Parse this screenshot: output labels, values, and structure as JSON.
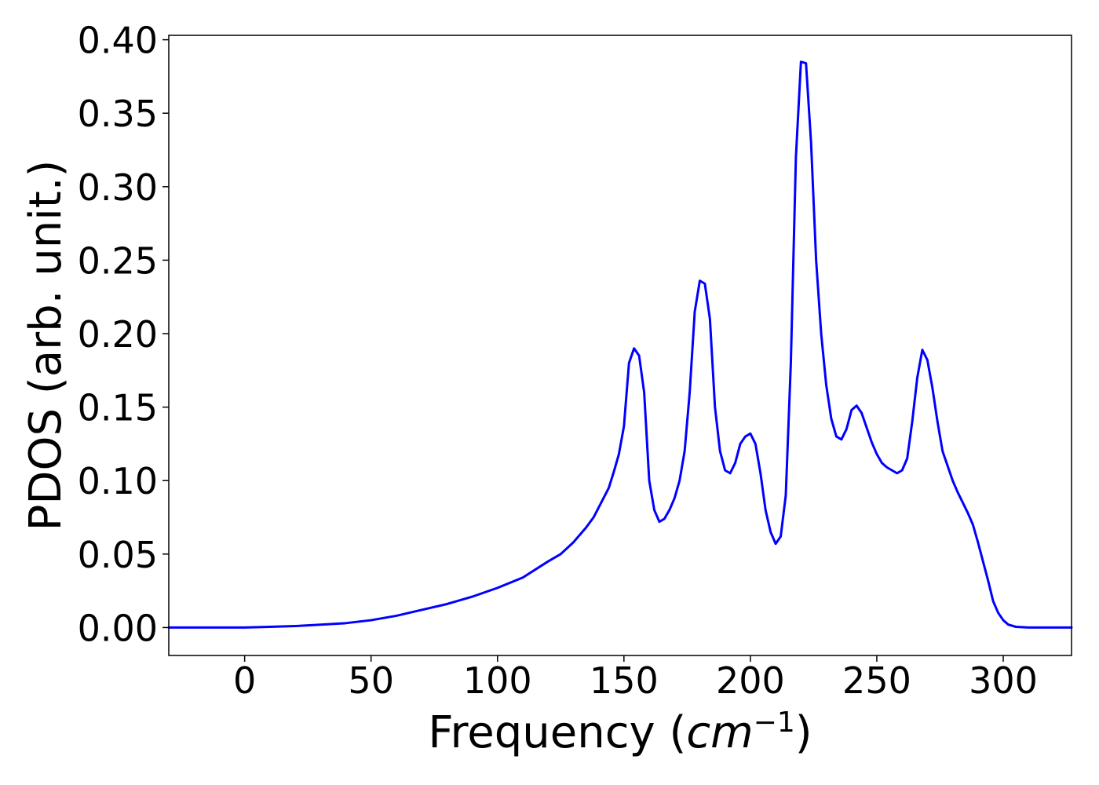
{
  "chart_data": {
    "type": "line",
    "title": "",
    "xlabel": "Frequency (",
    "xlabel_math_base": "cm",
    "xlabel_math_exp": "−1",
    "xlabel_close": ")",
    "ylabel": "PDOS (arb. unit.)",
    "xlim": [
      -30,
      327
    ],
    "ylim": [
      -0.019,
      0.403
    ],
    "xticks": [
      0,
      50,
      100,
      150,
      200,
      250,
      300
    ],
    "xtick_labels": [
      "0",
      "50",
      "100",
      "150",
      "200",
      "250",
      "300"
    ],
    "yticks": [
      0.0,
      0.05,
      0.1,
      0.15,
      0.2,
      0.25,
      0.3,
      0.35,
      0.4
    ],
    "ytick_labels": [
      "0.00",
      "0.05",
      "0.10",
      "0.15",
      "0.20",
      "0.25",
      "0.30",
      "0.35",
      "0.40"
    ],
    "grid": false,
    "series": [
      {
        "color": "#0000ff",
        "x": [
          -30,
          0,
          10,
          20,
          30,
          40,
          50,
          60,
          70,
          80,
          90,
          100,
          110,
          120,
          125,
          130,
          135,
          138,
          141,
          144,
          146,
          148,
          150,
          152,
          154,
          156,
          158,
          160,
          162,
          164,
          166,
          168,
          170,
          172,
          174,
          176,
          178,
          180,
          182,
          184,
          186,
          188,
          190,
          192,
          194,
          196,
          198,
          200,
          202,
          204,
          206,
          208,
          210,
          212,
          214,
          216,
          218,
          220,
          222,
          224,
          226,
          228,
          230,
          232,
          234,
          236,
          238,
          240,
          242,
          244,
          246,
          248,
          250,
          252,
          254,
          256,
          258,
          260,
          262,
          264,
          266,
          268,
          270,
          272,
          274,
          276,
          278,
          280,
          282,
          284,
          286,
          288,
          290,
          292,
          294,
          296,
          298,
          300,
          302,
          305,
          310,
          320,
          327
        ],
        "y": [
          0.0,
          0.0,
          0.0005,
          0.001,
          0.002,
          0.003,
          0.005,
          0.008,
          0.012,
          0.016,
          0.021,
          0.027,
          0.034,
          0.045,
          0.05,
          0.058,
          0.068,
          0.075,
          0.085,
          0.095,
          0.106,
          0.118,
          0.137,
          0.18,
          0.19,
          0.185,
          0.16,
          0.1,
          0.08,
          0.072,
          0.074,
          0.08,
          0.088,
          0.1,
          0.12,
          0.16,
          0.215,
          0.236,
          0.234,
          0.21,
          0.15,
          0.12,
          0.107,
          0.105,
          0.112,
          0.125,
          0.13,
          0.132,
          0.125,
          0.105,
          0.08,
          0.065,
          0.057,
          0.062,
          0.09,
          0.18,
          0.32,
          0.385,
          0.384,
          0.33,
          0.25,
          0.2,
          0.165,
          0.142,
          0.13,
          0.128,
          0.135,
          0.148,
          0.151,
          0.146,
          0.136,
          0.126,
          0.118,
          0.112,
          0.109,
          0.107,
          0.105,
          0.107,
          0.115,
          0.14,
          0.17,
          0.189,
          0.182,
          0.163,
          0.14,
          0.12,
          0.11,
          0.1,
          0.092,
          0.085,
          0.078,
          0.07,
          0.058,
          0.045,
          0.032,
          0.018,
          0.01,
          0.005,
          0.002,
          0.0005,
          0.0,
          0.0,
          0.0
        ]
      }
    ]
  }
}
